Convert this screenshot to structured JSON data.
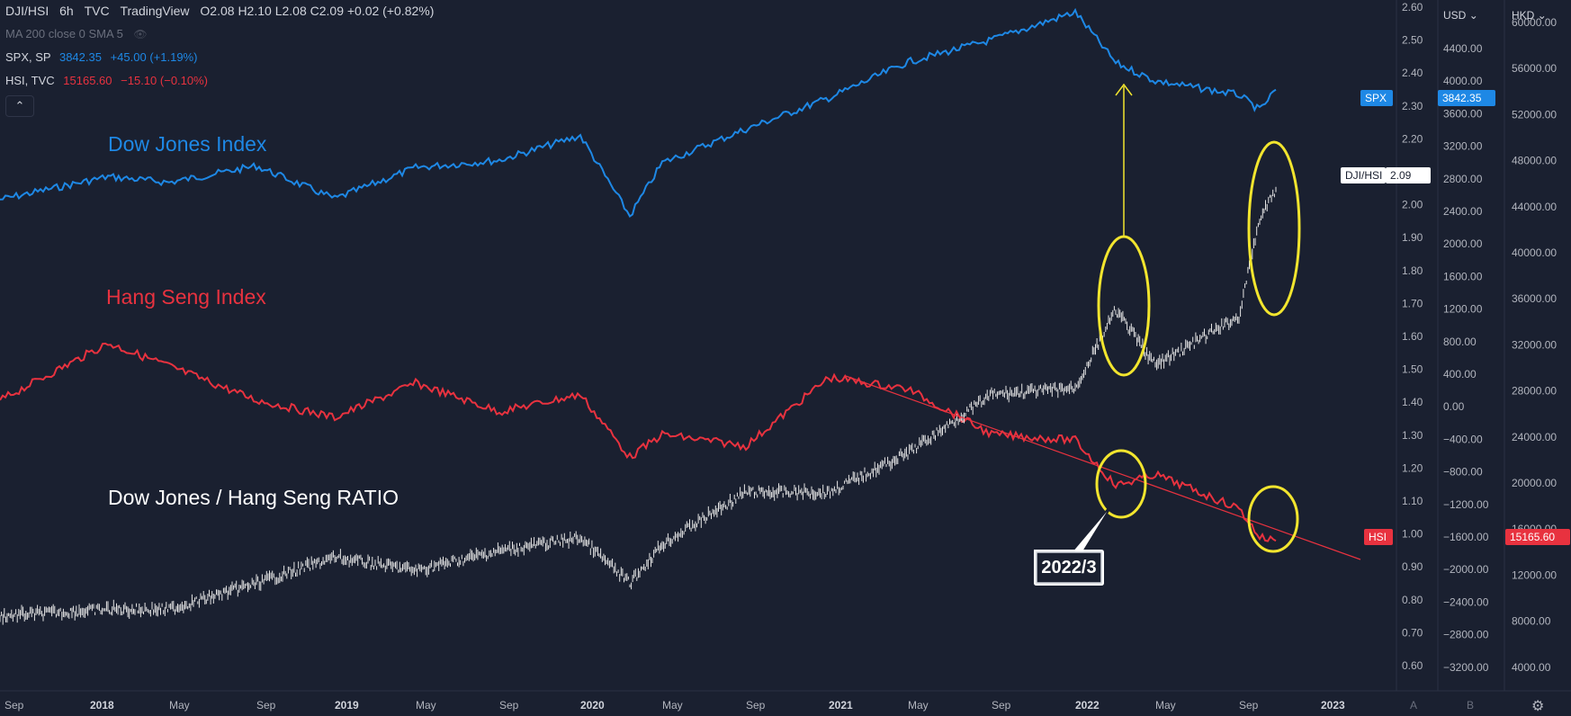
{
  "legend": {
    "main": {
      "symbol": "DJI/HSI",
      "interval": "6h",
      "source": "TVC",
      "platform": "TradingView",
      "ohlc": "O2.08  H2.10  L2.08  C2.09  +0.02 (+0.82%)"
    },
    "ma": "MA 200 close 0 SMA 5",
    "spx": {
      "symbol": "SPX, SP",
      "value": "3842.35",
      "change": "+45.00 (+1.19%)"
    },
    "hsi": {
      "symbol": "HSI, TVC",
      "value": "15165.60",
      "change": "−15.10 (−0.10%)"
    },
    "collapse_glyph": "⌃",
    "eye_glyph": "👁"
  },
  "colors": {
    "bg": "#1a2030",
    "spx": "#1e88e5",
    "hsi": "#e8323f",
    "ratio": "#e6e6e6",
    "annotation": "#f2e52e",
    "trend": "#e8323f",
    "grid_text": "#b2b5be"
  },
  "annotations": {
    "dow": "Dow Jones Index",
    "hang": "Hang Seng Index",
    "ratio": "Dow Jones / Hang Seng RATIO",
    "callout": "2022/3"
  },
  "axes": {
    "ratio_ticks": [
      "2.60",
      "2.50",
      "2.40",
      "2.30",
      "2.20",
      "2.10",
      "2.00",
      "1.90",
      "1.80",
      "1.70",
      "1.60",
      "1.50",
      "1.40",
      "1.30",
      "1.20",
      "1.10",
      "1.00",
      "0.90",
      "0.80",
      "0.70",
      "0.60"
    ],
    "usd_ticks": [
      "4400.00",
      "4000.00",
      "3600.00",
      "3200.00",
      "2800.00",
      "2400.00",
      "2000.00",
      "1600.00",
      "1200.00",
      "800.00",
      "400.00",
      "0.00",
      "−400.00",
      "−800.00",
      "−1200.00",
      "−1600.00",
      "−2000.00",
      "−2400.00",
      "−2800.00",
      "−3200.00"
    ],
    "hkd_ticks": [
      "60000.00",
      "56000.00",
      "52000.00",
      "48000.00",
      "44000.00",
      "40000.00",
      "36000.00",
      "32000.00",
      "28000.00",
      "24000.00",
      "20000.00",
      "16000.00",
      "12000.00",
      "8000.00",
      "4000.00"
    ],
    "time_ticks": [
      "Sep",
      "2018",
      "May",
      "Sep",
      "2019",
      "May",
      "Sep",
      "2020",
      "May",
      "Sep",
      "2021",
      "May",
      "Sep",
      "2022",
      "May",
      "Sep",
      "2023"
    ],
    "usd_label": "USD",
    "hkd_label": "HKD",
    "a_label": "A",
    "b_label": "B",
    "settings_glyph": "⚙"
  },
  "price_tags": {
    "spx_name": "SPX",
    "spx_value": "3842.35",
    "ratio_name": "DJI/HSI",
    "ratio_value": "2.09",
    "hsi_name": "HSI",
    "hsi_value": "15165.60"
  },
  "chart_data": {
    "type": "line",
    "x_axis": "date",
    "x": [
      "2017-09",
      "2018-01",
      "2018-05",
      "2018-09",
      "2019-01",
      "2019-05",
      "2019-09",
      "2020-01",
      "2020-03",
      "2020-05",
      "2020-09",
      "2021-01",
      "2021-05",
      "2021-09",
      "2022-01",
      "2022-03",
      "2022-05",
      "2022-09",
      "2022-10",
      "2022-11"
    ],
    "series": [
      {
        "name": "SPX",
        "axis": "USD",
        "values": [
          2500,
          2780,
          2710,
          2910,
          2510,
          2890,
          2980,
          3280,
          2300,
          2950,
          3360,
          3740,
          4180,
          4450,
          4790,
          4170,
          3950,
          3780,
          3590,
          3842.35
        ]
      },
      {
        "name": "HSI",
        "axis": "HKD",
        "values": [
          27500,
          32500,
          30500,
          27500,
          26000,
          29000,
          26500,
          28000,
          22500,
          24500,
          23500,
          29500,
          28500,
          24500,
          24000,
          20000,
          21000,
          18000,
          15500,
          15165.6
        ]
      },
      {
        "name": "DJI/HSI",
        "axis": "ratio",
        "values": [
          0.78,
          0.8,
          0.8,
          0.88,
          0.96,
          0.92,
          0.98,
          1.02,
          0.88,
          1.0,
          1.16,
          1.16,
          1.28,
          1.46,
          1.48,
          1.72,
          1.55,
          1.7,
          2.0,
          2.09
        ]
      }
    ],
    "ratio_ylim": [
      0.55,
      2.65
    ],
    "usd_ylim": [
      -3500,
      4850
    ],
    "hkd_ylim": [
      2000,
      62000
    ]
  }
}
